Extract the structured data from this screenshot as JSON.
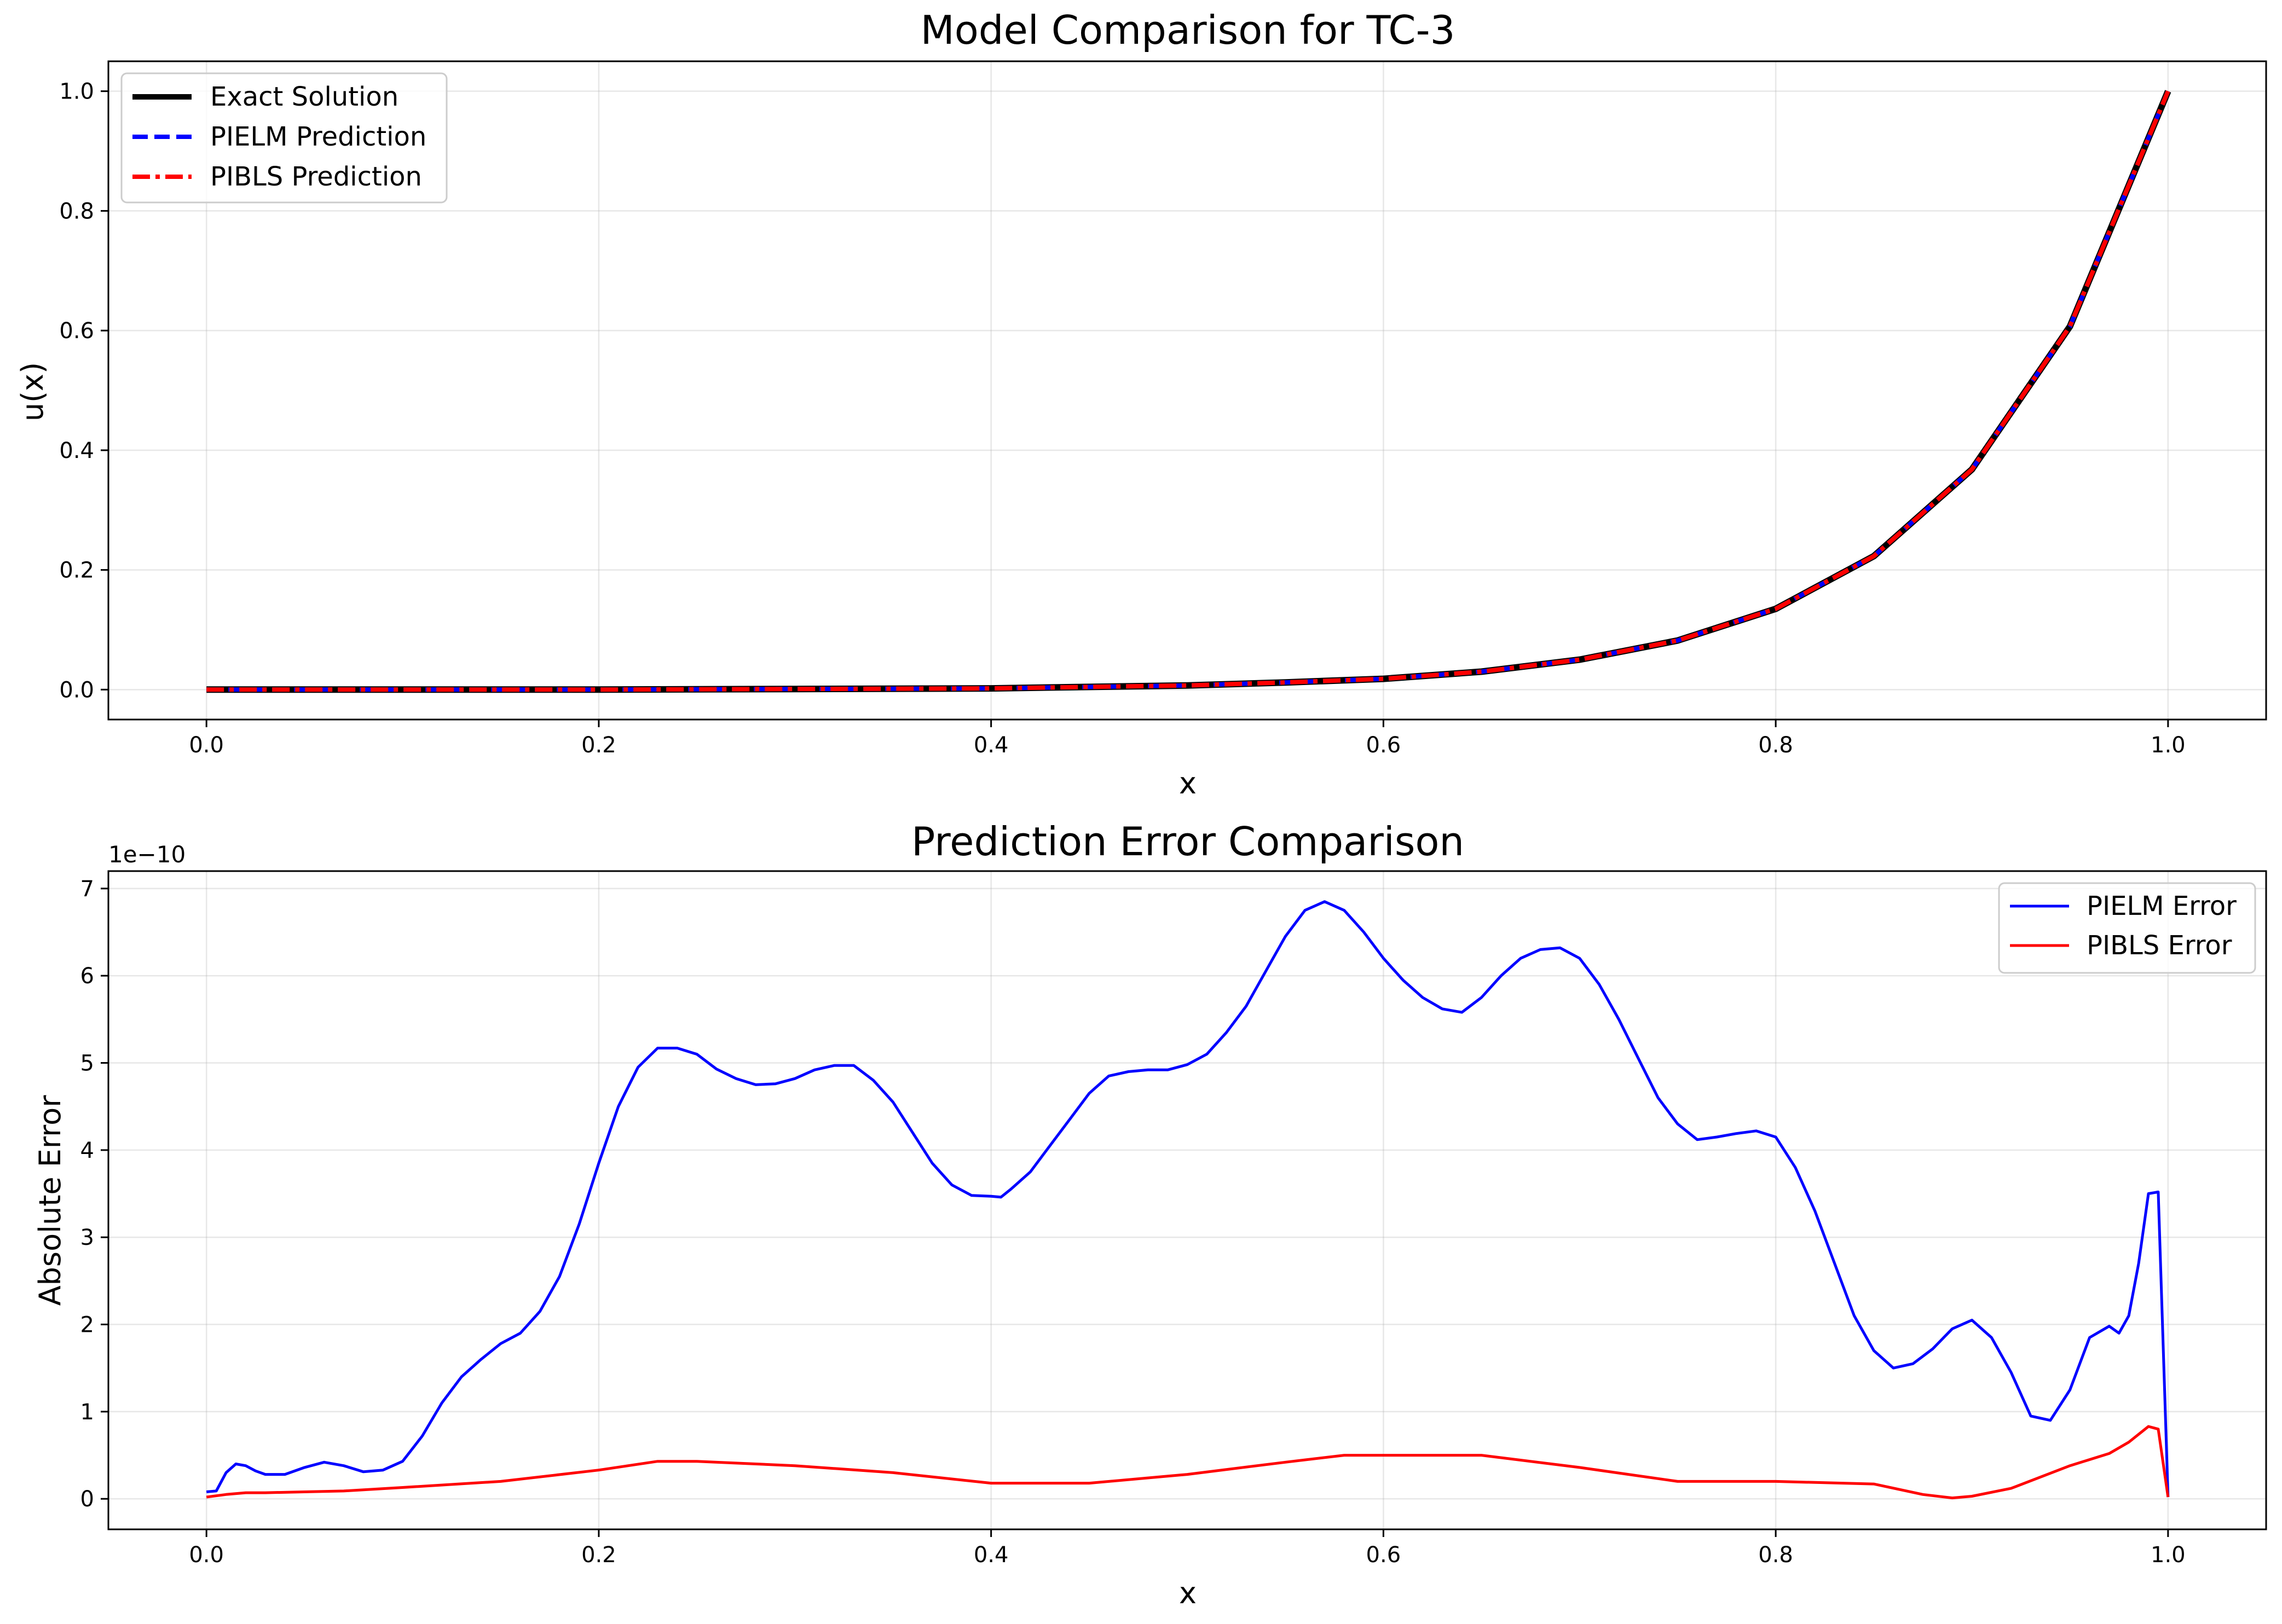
{
  "chart_data": [
    {
      "type": "line",
      "title": "Model Comparison for TC-3",
      "xlabel": "x",
      "ylabel": "u(x)",
      "xlim": [
        -0.05,
        1.05
      ],
      "ylim": [
        -0.05,
        1.05
      ],
      "xticks": [
        0.0,
        0.2,
        0.4,
        0.6,
        0.8,
        1.0
      ],
      "xtick_labels": [
        "0.0",
        "0.2",
        "0.4",
        "0.6",
        "0.8",
        "1.0"
      ],
      "yticks": [
        0.0,
        0.2,
        0.4,
        0.6,
        0.8,
        1.0
      ],
      "ytick_labels": [
        "0.0",
        "0.2",
        "0.4",
        "0.6",
        "0.8",
        "1.0"
      ],
      "grid": true,
      "legend_position": "upper-left",
      "x": [
        0.0,
        0.1,
        0.2,
        0.3,
        0.4,
        0.5,
        0.55,
        0.6,
        0.65,
        0.7,
        0.75,
        0.8,
        0.85,
        0.9,
        0.95,
        1.0
      ],
      "series": [
        {
          "name": "Exact Solution",
          "color": "#000000",
          "style": "solid",
          "values": [
            0.0,
            0.0,
            0.0,
            0.001,
            0.002,
            0.007,
            0.012,
            0.018,
            0.03,
            0.05,
            0.082,
            0.135,
            0.223,
            0.368,
            0.607,
            1.0
          ]
        },
        {
          "name": "PIELM Prediction",
          "color": "#0000ff",
          "style": "dashed",
          "values": [
            0.0,
            0.0,
            0.0,
            0.001,
            0.002,
            0.007,
            0.012,
            0.018,
            0.03,
            0.05,
            0.082,
            0.135,
            0.223,
            0.368,
            0.607,
            1.0
          ]
        },
        {
          "name": "PIBLS Prediction",
          "color": "#ff0000",
          "style": "dashdot",
          "values": [
            0.0,
            0.0,
            0.0,
            0.001,
            0.002,
            0.007,
            0.012,
            0.018,
            0.03,
            0.05,
            0.082,
            0.135,
            0.223,
            0.368,
            0.607,
            1.0
          ]
        }
      ]
    },
    {
      "type": "line",
      "title": "Prediction Error Comparison",
      "xlabel": "x",
      "ylabel": "Absolute Error",
      "offset_label": "1e−10",
      "xlim": [
        -0.05,
        1.05
      ],
      "ylim": [
        -0.35,
        7.2
      ],
      "xticks": [
        0.0,
        0.2,
        0.4,
        0.6,
        0.8,
        1.0
      ],
      "xtick_labels": [
        "0.0",
        "0.2",
        "0.4",
        "0.6",
        "0.8",
        "1.0"
      ],
      "yticks": [
        0,
        1,
        2,
        3,
        4,
        5,
        6,
        7
      ],
      "ytick_labels": [
        "0",
        "1",
        "2",
        "3",
        "4",
        "5",
        "6",
        "7"
      ],
      "grid": true,
      "legend_position": "upper-right",
      "series": [
        {
          "name": "PIELM Error",
          "color": "#0000ff",
          "x": [
            0.0,
            0.005,
            0.01,
            0.015,
            0.02,
            0.025,
            0.03,
            0.04,
            0.05,
            0.06,
            0.07,
            0.08,
            0.09,
            0.1,
            0.11,
            0.12,
            0.13,
            0.14,
            0.15,
            0.16,
            0.17,
            0.18,
            0.19,
            0.2,
            0.21,
            0.22,
            0.23,
            0.24,
            0.25,
            0.26,
            0.27,
            0.28,
            0.29,
            0.3,
            0.31,
            0.32,
            0.33,
            0.34,
            0.35,
            0.36,
            0.37,
            0.38,
            0.39,
            0.4,
            0.405,
            0.41,
            0.42,
            0.43,
            0.44,
            0.45,
            0.46,
            0.47,
            0.48,
            0.49,
            0.5,
            0.51,
            0.52,
            0.53,
            0.54,
            0.55,
            0.56,
            0.57,
            0.58,
            0.59,
            0.6,
            0.61,
            0.62,
            0.63,
            0.64,
            0.65,
            0.66,
            0.67,
            0.68,
            0.69,
            0.7,
            0.71,
            0.72,
            0.73,
            0.74,
            0.75,
            0.76,
            0.77,
            0.78,
            0.79,
            0.8,
            0.81,
            0.82,
            0.83,
            0.84,
            0.85,
            0.86,
            0.87,
            0.88,
            0.89,
            0.9,
            0.91,
            0.92,
            0.93,
            0.94,
            0.95,
            0.96,
            0.97,
            0.975,
            0.98,
            0.985,
            0.99,
            0.995,
            1.0
          ],
          "values": [
            0.08,
            0.09,
            0.3,
            0.4,
            0.38,
            0.32,
            0.28,
            0.28,
            0.36,
            0.42,
            0.38,
            0.31,
            0.33,
            0.43,
            0.72,
            1.1,
            1.4,
            1.6,
            1.78,
            1.9,
            2.15,
            2.55,
            3.15,
            3.85,
            4.5,
            4.95,
            5.17,
            5.17,
            5.1,
            4.93,
            4.82,
            4.75,
            4.76,
            4.82,
            4.92,
            4.97,
            4.97,
            4.8,
            4.55,
            4.2,
            3.85,
            3.6,
            3.48,
            3.47,
            3.46,
            3.55,
            3.75,
            4.05,
            4.35,
            4.65,
            4.85,
            4.9,
            4.92,
            4.92,
            4.98,
            5.1,
            5.35,
            5.65,
            6.05,
            6.45,
            6.75,
            6.85,
            6.75,
            6.5,
            6.2,
            5.95,
            5.75,
            5.62,
            5.58,
            5.75,
            6.0,
            6.2,
            6.3,
            6.32,
            6.2,
            5.9,
            5.5,
            5.05,
            4.6,
            4.3,
            4.12,
            4.15,
            4.19,
            4.22,
            4.15,
            3.8,
            3.3,
            2.7,
            2.1,
            1.7,
            1.5,
            1.55,
            1.72,
            1.95,
            2.05,
            1.85,
            1.45,
            0.95,
            0.9,
            1.25,
            1.85,
            1.98,
            1.9,
            2.1,
            2.7,
            3.5,
            3.52,
            0.02
          ]
        },
        {
          "name": "PIBLS Error",
          "color": "#ff0000",
          "x": [
            0.0,
            0.01,
            0.02,
            0.03,
            0.05,
            0.07,
            0.1,
            0.15,
            0.2,
            0.23,
            0.25,
            0.3,
            0.35,
            0.4,
            0.45,
            0.5,
            0.55,
            0.58,
            0.6,
            0.65,
            0.7,
            0.75,
            0.8,
            0.85,
            0.875,
            0.89,
            0.9,
            0.92,
            0.95,
            0.97,
            0.98,
            0.99,
            0.995,
            1.0
          ],
          "values": [
            0.02,
            0.05,
            0.07,
            0.07,
            0.08,
            0.09,
            0.13,
            0.2,
            0.33,
            0.43,
            0.43,
            0.38,
            0.3,
            0.18,
            0.18,
            0.28,
            0.42,
            0.5,
            0.5,
            0.5,
            0.36,
            0.2,
            0.2,
            0.17,
            0.05,
            0.01,
            0.03,
            0.12,
            0.38,
            0.52,
            0.65,
            0.83,
            0.8,
            0.02
          ]
        }
      ]
    }
  ]
}
